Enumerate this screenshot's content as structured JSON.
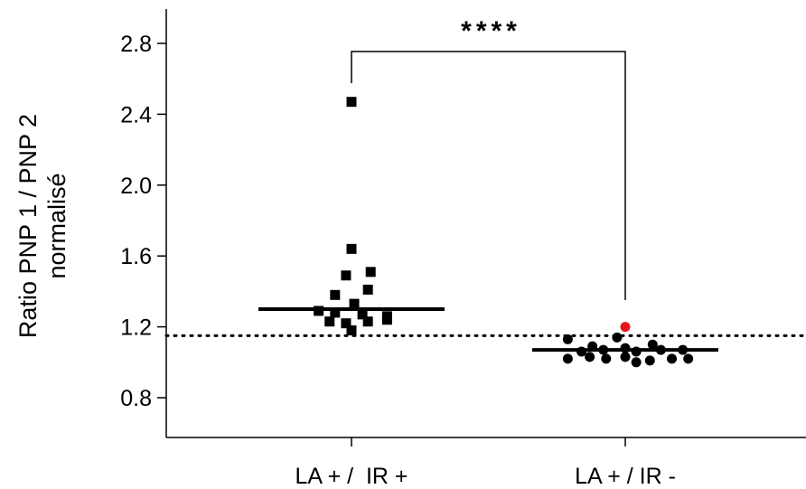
{
  "chart_data": {
    "type": "scatter",
    "categories": [
      "LA + /  IR +",
      "LA + / IR -"
    ],
    "ylabel_lines": [
      "Ratio PNP 1 / PNP 2",
      "normalisé"
    ],
    "ylim": [
      0.6,
      3.0
    ],
    "yticks": [
      "0.8",
      "1.2",
      "1.6",
      "2.0",
      "2.4",
      "2.8"
    ],
    "reference_line": 1.15,
    "significance": "****",
    "series": [
      {
        "marker": "square",
        "color": "#000000",
        "points": [
          {
            "x": 0,
            "y": 2.47
          },
          {
            "x": 0,
            "y": 1.64
          },
          {
            "x": -0.02,
            "y": 1.49
          },
          {
            "x": 0.07,
            "y": 1.51
          },
          {
            "x": -0.06,
            "y": 1.38
          },
          {
            "x": 0.06,
            "y": 1.41
          },
          {
            "x": 0.01,
            "y": 1.33
          },
          {
            "x": -0.12,
            "y": 1.29
          },
          {
            "x": -0.06,
            "y": 1.28
          },
          {
            "x": 0.04,
            "y": 1.27
          },
          {
            "x": 0.13,
            "y": 1.26
          },
          {
            "x": -0.08,
            "y": 1.23
          },
          {
            "x": -0.02,
            "y": 1.22
          },
          {
            "x": 0.06,
            "y": 1.23
          },
          {
            "x": 0.13,
            "y": 1.24
          },
          {
            "x": 0.0,
            "y": 1.18
          }
        ],
        "median": 1.3
      },
      {
        "marker": "circle",
        "color": "#000000",
        "points": [
          {
            "x": 1.0,
            "y": 1.2,
            "color": "#e8141b"
          },
          {
            "x": 0.79,
            "y": 1.13
          },
          {
            "x": 0.97,
            "y": 1.14
          },
          {
            "x": 0.88,
            "y": 1.09
          },
          {
            "x": 1.1,
            "y": 1.1
          },
          {
            "x": 0.84,
            "y": 1.06
          },
          {
            "x": 0.92,
            "y": 1.07
          },
          {
            "x": 1.0,
            "y": 1.08
          },
          {
            "x": 1.04,
            "y": 1.06
          },
          {
            "x": 1.13,
            "y": 1.07
          },
          {
            "x": 1.21,
            "y": 1.07
          },
          {
            "x": 0.79,
            "y": 1.02
          },
          {
            "x": 0.87,
            "y": 1.03
          },
          {
            "x": 0.93,
            "y": 1.02
          },
          {
            "x": 1.0,
            "y": 1.03
          },
          {
            "x": 1.04,
            "y": 1.0
          },
          {
            "x": 1.09,
            "y": 1.01
          },
          {
            "x": 1.17,
            "y": 1.02
          },
          {
            "x": 1.23,
            "y": 1.02
          }
        ],
        "median": 1.07
      }
    ]
  }
}
